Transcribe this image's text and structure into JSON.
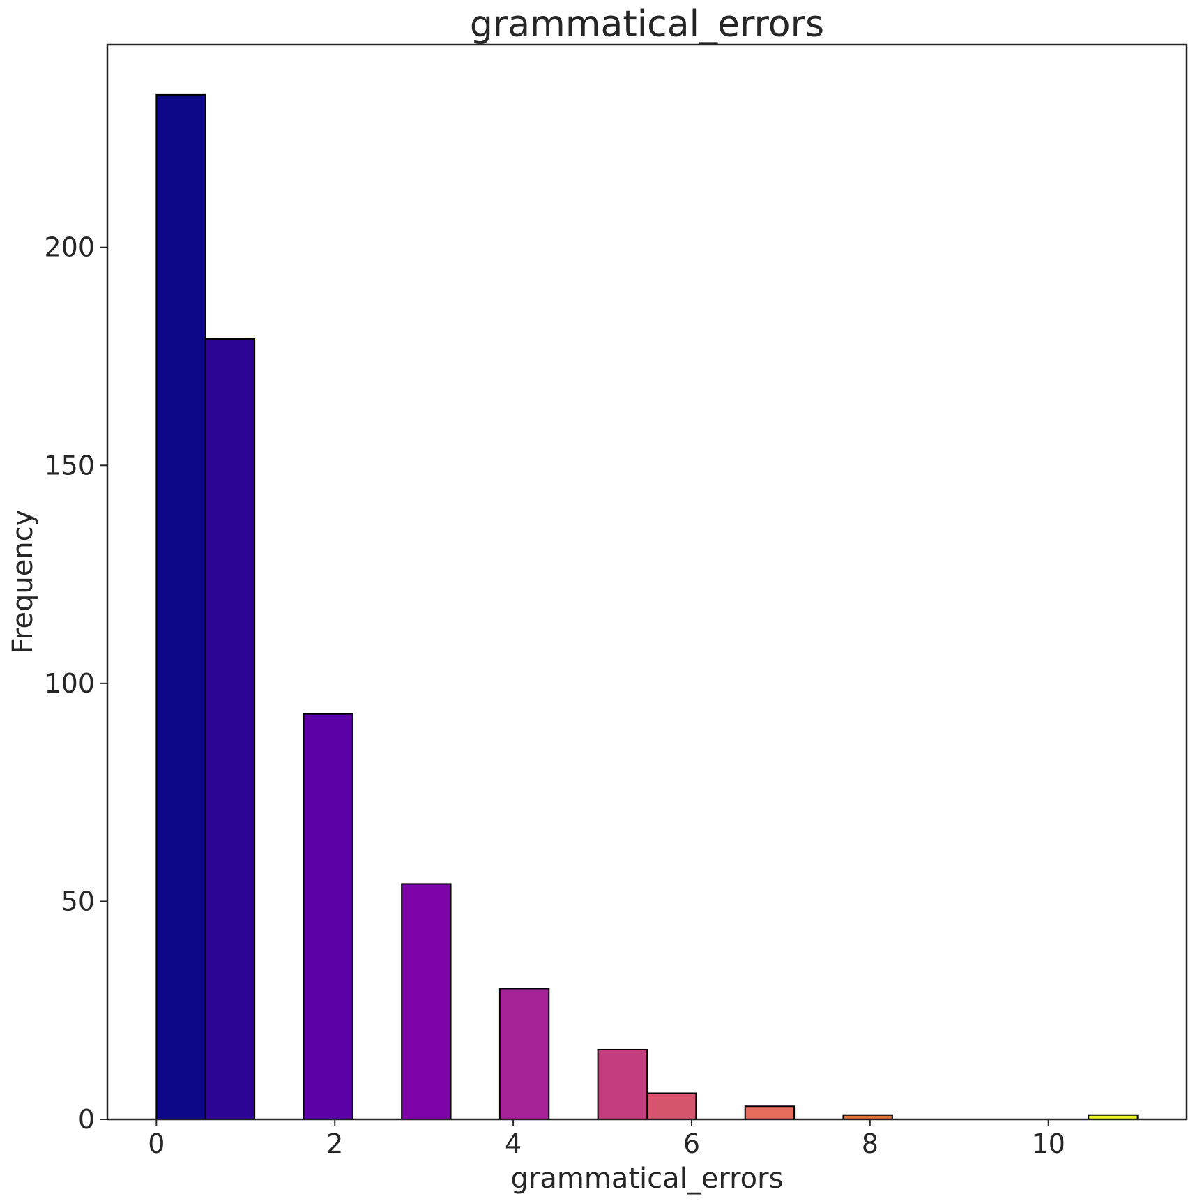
{
  "chart_data": {
    "type": "bar",
    "title": "grammatical_errors",
    "xlabel": "grammatical_errors",
    "ylabel": "Frequency",
    "xlim": [
      -0.55,
      11.55
    ],
    "ylim": [
      0,
      246.5
    ],
    "xticks": [
      0,
      2,
      4,
      6,
      8,
      10
    ],
    "yticks": [
      0,
      50,
      100,
      150,
      200
    ],
    "grid": false,
    "bins": [
      {
        "x0": 0.0,
        "x1": 0.55,
        "count": 235,
        "color": "#0d0887"
      },
      {
        "x0": 0.55,
        "x1": 1.1,
        "count": 179,
        "color": "#2c0594"
      },
      {
        "x0": 1.65,
        "x1": 2.2,
        "count": 93,
        "color": "#5c01a6"
      },
      {
        "x0": 2.75,
        "x1": 3.3,
        "count": 54,
        "color": "#7e03a8"
      },
      {
        "x0": 3.85,
        "x1": 4.4,
        "count": 30,
        "color": "#a72197"
      },
      {
        "x0": 4.95,
        "x1": 5.5,
        "count": 16,
        "color": "#c43e7f"
      },
      {
        "x0": 5.5,
        "x1": 6.05,
        "count": 6,
        "color": "#d5546e"
      },
      {
        "x0": 6.6,
        "x1": 7.15,
        "count": 3,
        "color": "#e66c5c"
      },
      {
        "x0": 7.7,
        "x1": 8.25,
        "count": 1,
        "color": "#e0723a"
      },
      {
        "x0": 10.45,
        "x1": 11.0,
        "count": 1,
        "color": "#f0f921"
      }
    ]
  }
}
